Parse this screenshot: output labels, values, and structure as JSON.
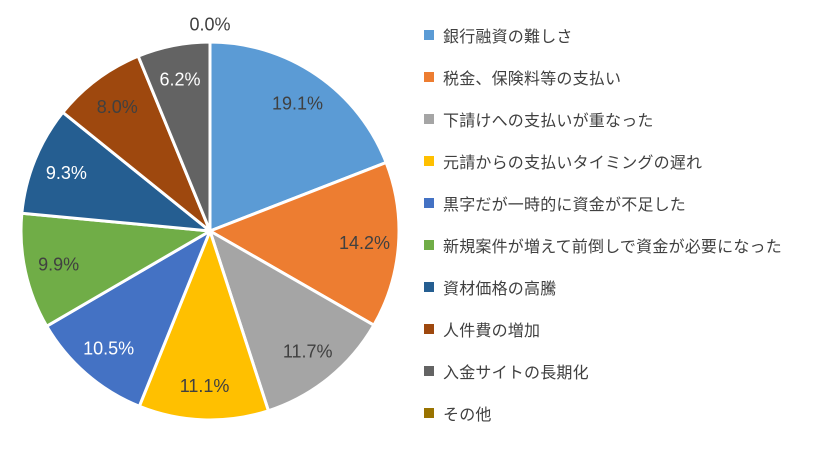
{
  "chart_data": {
    "type": "pie",
    "title": "",
    "legend_position": "right",
    "direction": "clockwise",
    "start_angle_deg": 0,
    "units": "%",
    "border_color": "#FFFFFF",
    "slices": [
      {
        "label": "銀行融資の難しさ",
        "value": 19.1,
        "display": "19.1%",
        "color": "#5B9BD5",
        "label_color": "#404040"
      },
      {
        "label": "税金、保険料等の支払い",
        "value": 14.2,
        "display": "14.2%",
        "color": "#ED7D31",
        "label_color": "#404040"
      },
      {
        "label": "下請けへの支払いが重なった",
        "value": 11.7,
        "display": "11.7%",
        "color": "#A5A5A5",
        "label_color": "#404040"
      },
      {
        "label": "元請からの支払いタイミングの遅れ",
        "value": 11.1,
        "display": "11.1%",
        "color": "#FFC000",
        "label_color": "#404040"
      },
      {
        "label": "黒字だが一時的に資金が不足した",
        "value": 10.5,
        "display": "10.5%",
        "color": "#4472C4",
        "label_color": "#FFFFFF"
      },
      {
        "label": "新規案件が増えて前倒しで資金が必要になった",
        "value": 9.9,
        "display": "9.9%",
        "color": "#70AD47",
        "label_color": "#404040"
      },
      {
        "label": "資材価格の高騰",
        "value": 9.3,
        "display": "9.3%",
        "color": "#255E91",
        "label_color": "#FFFFFF"
      },
      {
        "label": "人件費の増加",
        "value": 8.0,
        "display": "8.0%",
        "color": "#9E480E",
        "label_color": "#404040"
      },
      {
        "label": "入金サイトの長期化",
        "value": 6.2,
        "display": "6.2%",
        "color": "#636363",
        "label_color": "#FFFFFF"
      },
      {
        "label": "その他",
        "value": 0.0,
        "display": "0.0%",
        "color": "#997300",
        "label_color": "#404040"
      }
    ]
  }
}
